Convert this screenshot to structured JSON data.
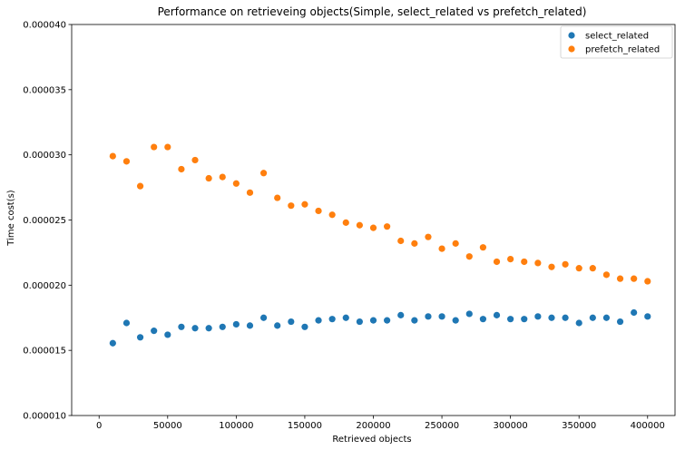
{
  "chart_data": {
    "type": "scatter",
    "title": "Performance on retrieveing objects(Simple, select_related vs prefetch_related)",
    "xlabel": "Retrieved objects",
    "ylabel": "Time cost(s)",
    "xlim": [
      -20000,
      420000
    ],
    "ylim": [
      1e-05,
      4e-05
    ],
    "xticks": [
      0,
      50000,
      100000,
      150000,
      200000,
      250000,
      300000,
      350000,
      400000
    ],
    "xtick_labels": [
      "0",
      "50000",
      "100000",
      "150000",
      "200000",
      "250000",
      "300000",
      "350000",
      "400000"
    ],
    "yticks": [
      1e-05,
      1.5e-05,
      2e-05,
      2.5e-05,
      3e-05,
      3.5e-05,
      4e-05
    ],
    "ytick_labels": [
      "0.000010",
      "0.000015",
      "0.000020",
      "0.000025",
      "0.000030",
      "0.000035",
      "0.000040"
    ],
    "grid": false,
    "legend_position": "top-right",
    "x": [
      10000,
      20000,
      30000,
      40000,
      50000,
      60000,
      70000,
      80000,
      90000,
      100000,
      110000,
      120000,
      130000,
      140000,
      150000,
      160000,
      170000,
      180000,
      190000,
      200000,
      210000,
      220000,
      230000,
      240000,
      250000,
      260000,
      270000,
      280000,
      290000,
      300000,
      310000,
      320000,
      330000,
      340000,
      350000,
      360000,
      370000,
      380000,
      390000,
      400000
    ],
    "series": [
      {
        "name": "select_related",
        "color": "#1f77b4",
        "values": [
          1.555e-05,
          1.71e-05,
          1.6e-05,
          1.65e-05,
          1.62e-05,
          1.68e-05,
          1.67e-05,
          1.67e-05,
          1.68e-05,
          1.7e-05,
          1.69e-05,
          1.75e-05,
          1.69e-05,
          1.72e-05,
          1.68e-05,
          1.73e-05,
          1.74e-05,
          1.75e-05,
          1.72e-05,
          1.73e-05,
          1.73e-05,
          1.77e-05,
          1.73e-05,
          1.76e-05,
          1.76e-05,
          1.73e-05,
          1.78e-05,
          1.74e-05,
          1.77e-05,
          1.74e-05,
          1.74e-05,
          1.76e-05,
          1.75e-05,
          1.75e-05,
          1.71e-05,
          1.75e-05,
          1.75e-05,
          1.72e-05,
          1.79e-05,
          1.76e-05
        ]
      },
      {
        "name": "prefetch_related",
        "color": "#ff7f0e",
        "values": [
          2.99e-05,
          2.95e-05,
          2.76e-05,
          3.06e-05,
          3.06e-05,
          2.89e-05,
          2.96e-05,
          2.82e-05,
          2.83e-05,
          2.78e-05,
          2.71e-05,
          2.86e-05,
          2.67e-05,
          2.61e-05,
          2.62e-05,
          2.57e-05,
          2.54e-05,
          2.48e-05,
          2.46e-05,
          2.44e-05,
          2.45e-05,
          2.34e-05,
          2.32e-05,
          2.37e-05,
          2.28e-05,
          2.32e-05,
          2.22e-05,
          2.29e-05,
          2.18e-05,
          2.2e-05,
          2.18e-05,
          2.17e-05,
          2.14e-05,
          2.16e-05,
          2.13e-05,
          2.13e-05,
          2.08e-05,
          2.05e-05,
          2.05e-05,
          2.03e-05
        ]
      }
    ]
  }
}
